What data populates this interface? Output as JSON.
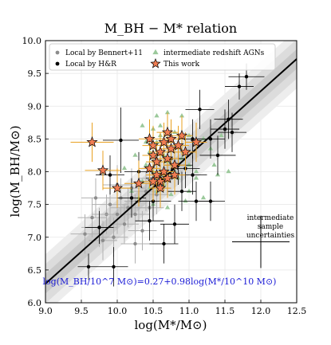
{
  "chart_data": {
    "type": "scatter",
    "title": "M_BH − M* relation",
    "xlabel": "log(M*/M⊙)",
    "ylabel": "log(M_BH/M⊙)",
    "xlim": [
      9.0,
      12.5
    ],
    "ylim": [
      6.0,
      10.0
    ],
    "x_ticks": [
      "9.0",
      "9.5",
      "10.0",
      "10.5",
      "11.0",
      "11.5",
      "12.0",
      "12.5"
    ],
    "y_ticks": [
      "6.0",
      "6.5",
      "7.0",
      "7.5",
      "8.0",
      "8.5",
      "9.0",
      "9.5",
      "10.0"
    ],
    "grid": true,
    "legend_position": "top-left",
    "legend": [
      {
        "label": "Local by Bennert+11",
        "marker": "dot-gray"
      },
      {
        "label": "intermediate redshift AGNs",
        "marker": "triangle-green"
      },
      {
        "label": "Local by H&R",
        "marker": "dot-black"
      },
      {
        "label": "This work",
        "marker": "star-orange"
      }
    ],
    "fit_line": {
      "intercept": 7.27,
      "slope": 0.98,
      "pivot_x": 10.0
    },
    "fit_equation": "log(M_BH/10^7 M⊙)=0.27+0.98log(M*/10^10 M⊙)",
    "annotation": [
      "intermediate",
      "sample",
      "uncertainties"
    ],
    "sample_uncertainty": {
      "x": 12.0,
      "y": 6.93,
      "xerr": 0.4,
      "yerr": 0.4
    },
    "series": [
      {
        "name": "Local by Bennert+11",
        "color": "#8c8c8c",
        "points": [
          [
            9.55,
            7.05,
            0.2,
            0.3
          ],
          [
            9.65,
            7.3,
            0.2,
            0.3
          ],
          [
            9.75,
            7.15,
            0.25,
            0.3
          ],
          [
            9.85,
            7.35,
            0.2,
            0.3
          ],
          [
            9.9,
            7.5,
            0.25,
            0.3
          ],
          [
            9.95,
            7.0,
            0.2,
            0.3
          ],
          [
            10.0,
            7.35,
            0.2,
            0.3
          ],
          [
            10.05,
            7.6,
            0.2,
            0.3
          ],
          [
            10.1,
            7.2,
            0.2,
            0.3
          ],
          [
            10.15,
            7.45,
            0.25,
            0.3
          ],
          [
            10.2,
            7.75,
            0.2,
            0.3
          ],
          [
            10.25,
            7.35,
            0.2,
            0.3
          ],
          [
            10.3,
            7.55,
            0.2,
            0.3
          ],
          [
            10.35,
            7.1,
            0.2,
            0.3
          ],
          [
            10.4,
            7.7,
            0.2,
            0.3
          ],
          [
            10.45,
            7.45,
            0.2,
            0.3
          ],
          [
            10.5,
            7.9,
            0.2,
            0.3
          ],
          [
            9.7,
            7.6,
            0.2,
            0.3
          ],
          [
            10.0,
            7.8,
            0.2,
            0.3
          ],
          [
            10.25,
            6.9,
            0.2,
            0.3
          ],
          [
            9.8,
            6.95,
            0.2,
            0.3
          ],
          [
            10.55,
            7.65,
            0.2,
            0.3
          ]
        ]
      },
      {
        "name": "Local by H&R",
        "color": "#000000",
        "points": [
          [
            9.6,
            6.55,
            0.15,
            0.2
          ],
          [
            9.95,
            6.55,
            0.2,
            0.3
          ],
          [
            9.75,
            7.15,
            0.2,
            0.25
          ],
          [
            9.9,
            7.95,
            0.2,
            0.3
          ],
          [
            10.05,
            8.48,
            0.25,
            0.5
          ],
          [
            10.3,
            8.0,
            0.2,
            0.3
          ],
          [
            10.45,
            7.25,
            0.2,
            0.3
          ],
          [
            10.5,
            7.55,
            0.25,
            0.3
          ],
          [
            10.6,
            7.9,
            0.2,
            0.3
          ],
          [
            10.75,
            8.2,
            0.2,
            0.3
          ],
          [
            10.85,
            8.1,
            0.2,
            0.3
          ],
          [
            10.9,
            7.7,
            0.2,
            0.3
          ],
          [
            10.95,
            8.05,
            0.2,
            0.3
          ],
          [
            11.05,
            8.5,
            0.2,
            0.3
          ],
          [
            11.1,
            7.55,
            0.25,
            0.3
          ],
          [
            11.15,
            8.95,
            0.2,
            0.3
          ],
          [
            11.05,
            7.95,
            0.2,
            0.3
          ],
          [
            11.3,
            8.5,
            0.2,
            0.3
          ],
          [
            11.4,
            8.25,
            0.25,
            0.3
          ],
          [
            11.5,
            8.65,
            0.2,
            0.3
          ],
          [
            11.55,
            8.8,
            0.2,
            0.3
          ],
          [
            11.6,
            8.6,
            0.2,
            0.3
          ],
          [
            11.7,
            9.3,
            0.2,
            0.2
          ],
          [
            11.8,
            9.45,
            0.25,
            0.2
          ],
          [
            11.3,
            7.55,
            0.2,
            0.3
          ],
          [
            10.8,
            7.2,
            0.2,
            0.3
          ],
          [
            10.2,
            7.6,
            0.2,
            0.3
          ],
          [
            10.65,
            6.9,
            0.2,
            0.3
          ]
        ]
      },
      {
        "name": "intermediate redshift AGNs",
        "color": "#9bc99b",
        "points": [
          [
            10.35,
            8.7
          ],
          [
            10.5,
            8.65
          ],
          [
            10.55,
            8.85
          ],
          [
            10.6,
            8.7
          ],
          [
            10.7,
            8.9
          ],
          [
            10.8,
            8.6
          ],
          [
            10.9,
            8.85
          ],
          [
            10.45,
            8.3
          ],
          [
            10.55,
            8.45
          ],
          [
            10.65,
            8.25
          ],
          [
            10.75,
            8.35
          ],
          [
            10.85,
            8.4
          ],
          [
            10.95,
            8.3
          ],
          [
            10.4,
            8.1
          ],
          [
            10.5,
            8.0
          ],
          [
            10.6,
            7.95
          ],
          [
            10.7,
            8.15
          ],
          [
            10.8,
            8.0
          ],
          [
            10.9,
            8.2
          ],
          [
            11.0,
            8.1
          ],
          [
            10.35,
            7.85
          ],
          [
            10.45,
            7.75
          ],
          [
            10.55,
            7.7
          ],
          [
            10.65,
            7.8
          ],
          [
            10.75,
            7.65
          ],
          [
            10.85,
            7.9
          ],
          [
            10.3,
            7.6
          ],
          [
            10.5,
            7.5
          ],
          [
            10.7,
            7.45
          ],
          [
            11.0,
            7.7
          ],
          [
            11.1,
            7.9
          ],
          [
            11.2,
            8.5
          ],
          [
            11.3,
            8.35
          ],
          [
            11.2,
            7.6
          ],
          [
            10.2,
            7.7
          ],
          [
            10.25,
            8.25
          ],
          [
            11.35,
            8.1
          ],
          [
            11.4,
            7.95
          ],
          [
            11.0,
            8.55
          ],
          [
            10.95,
            7.55
          ],
          [
            11.1,
            8.0
          ],
          [
            10.6,
            8.55
          ],
          [
            10.4,
            8.45
          ],
          [
            11.55,
            8.0
          ],
          [
            10.1,
            8.05
          ],
          [
            11.45,
            8.55
          ]
        ]
      },
      {
        "name": "This work",
        "color": "#f07d52",
        "points": [
          [
            9.65,
            8.45,
            0.3,
            0.3
          ],
          [
            9.8,
            8.02,
            0.25,
            0.3
          ],
          [
            10.0,
            7.75,
            0.2,
            0.3
          ],
          [
            10.3,
            7.82,
            0.2,
            0.35
          ],
          [
            10.45,
            8.5,
            0.15,
            0.3
          ],
          [
            10.5,
            8.4,
            0.15,
            0.3
          ],
          [
            10.5,
            8.25,
            0.15,
            0.3
          ],
          [
            10.55,
            8.15,
            0.15,
            0.3
          ],
          [
            10.55,
            7.95,
            0.15,
            0.3
          ],
          [
            10.6,
            7.85,
            0.15,
            0.3
          ],
          [
            10.6,
            8.3,
            0.15,
            0.3
          ],
          [
            10.65,
            8.45,
            0.15,
            0.3
          ],
          [
            10.65,
            8.0,
            0.15,
            0.3
          ],
          [
            10.7,
            8.2,
            0.15,
            0.3
          ],
          [
            10.7,
            7.9,
            0.15,
            0.3
          ],
          [
            10.75,
            8.5,
            0.15,
            0.3
          ],
          [
            10.75,
            8.35,
            0.15,
            0.3
          ],
          [
            10.8,
            8.1,
            0.15,
            0.3
          ],
          [
            10.8,
            7.95,
            0.15,
            0.3
          ],
          [
            10.85,
            8.4,
            0.15,
            0.3
          ],
          [
            10.9,
            8.55,
            0.15,
            0.3
          ],
          [
            10.95,
            8.3,
            0.15,
            0.3
          ],
          [
            10.6,
            7.75,
            0.15,
            0.3
          ],
          [
            10.5,
            7.85,
            0.15,
            0.3
          ],
          [
            11.1,
            8.45,
            0.15,
            0.3
          ],
          [
            10.45,
            8.05,
            0.15,
            0.3
          ],
          [
            10.7,
            8.6,
            0.15,
            0.3
          ]
        ]
      }
    ]
  }
}
